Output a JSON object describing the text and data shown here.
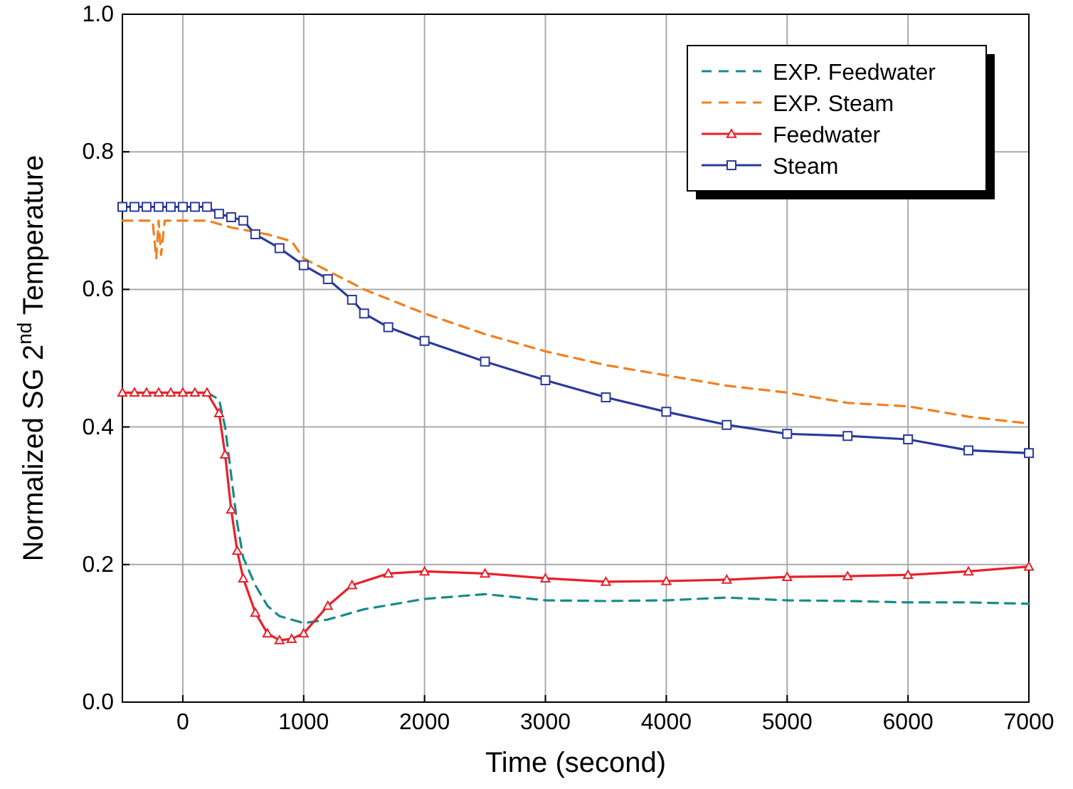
{
  "chart_data": {
    "type": "line",
    "xlabel": "Time (second)",
    "ylabel": "Normalized SG 2$^{nd}$ Temperature",
    "xlim": [
      -500,
      7000
    ],
    "xticks": [
      0,
      1000,
      2000,
      3000,
      4000,
      5000,
      6000,
      7000
    ],
    "ylim": [
      0,
      1
    ],
    "yticks": [
      {
        "value": 0,
        "label": "0.0"
      },
      {
        "value": 0.2,
        "label": "0.2"
      },
      {
        "value": 0.4,
        "label": "0.4"
      },
      {
        "value": 0.6,
        "label": "0.6"
      },
      {
        "value": 0.8,
        "label": "0.8"
      },
      {
        "value": 1,
        "label": "1.0"
      }
    ],
    "grid": true,
    "legend": "top right",
    "series": [
      {
        "name": "EXP. Feedwater",
        "color": "#1a8a8a",
        "line_style": "dashed",
        "marker": "none",
        "x": [
          200,
          300,
          350,
          400,
          450,
          500,
          600,
          700,
          800,
          1000,
          1200,
          1500,
          2000,
          2500,
          3000,
          3500,
          4000,
          4500,
          5000,
          5500,
          6000,
          6500,
          7000
        ],
        "values": [
          0.45,
          0.44,
          0.4,
          0.33,
          0.26,
          0.21,
          0.17,
          0.14,
          0.125,
          0.115,
          0.12,
          0.135,
          0.15,
          0.157,
          0.148,
          0.147,
          0.148,
          0.152,
          0.148,
          0.147,
          0.145,
          0.145,
          0.143
        ]
      },
      {
        "name": "EXP. Steam",
        "color": "#f08020",
        "line_style": "dashed",
        "marker": "none",
        "x": [
          -500,
          -250,
          -220,
          -200,
          -180,
          -150,
          0,
          200,
          400,
          700,
          900,
          1000,
          1500,
          2000,
          2500,
          3000,
          3500,
          4000,
          4500,
          5000,
          5500,
          6000,
          6500,
          7000
        ],
        "values": [
          0.7,
          0.7,
          0.645,
          0.7,
          0.65,
          0.7,
          0.7,
          0.7,
          0.69,
          0.68,
          0.67,
          0.645,
          0.6,
          0.565,
          0.535,
          0.51,
          0.49,
          0.475,
          0.46,
          0.45,
          0.435,
          0.43,
          0.415,
          0.405
        ]
      },
      {
        "name": "Feedwater",
        "color": "#e8202a",
        "line_style": "solid",
        "marker": "triangle",
        "x": [
          -500,
          -400,
          -300,
          -200,
          -100,
          0,
          100,
          200,
          300,
          350,
          400,
          450,
          500,
          600,
          700,
          800,
          900,
          1000,
          1200,
          1400,
          1700,
          2000,
          2500,
          3000,
          3500,
          4000,
          4500,
          5000,
          5500,
          6000,
          6500,
          7000
        ],
        "values": [
          0.45,
          0.45,
          0.45,
          0.45,
          0.45,
          0.45,
          0.45,
          0.45,
          0.42,
          0.36,
          0.28,
          0.22,
          0.18,
          0.13,
          0.1,
          0.09,
          0.092,
          0.1,
          0.14,
          0.17,
          0.187,
          0.19,
          0.187,
          0.18,
          0.175,
          0.176,
          0.178,
          0.182,
          0.183,
          0.185,
          0.19,
          0.197
        ]
      },
      {
        "name": "Steam",
        "color": "#2a3a9a",
        "line_style": "solid",
        "marker": "square",
        "x": [
          -500,
          -400,
          -300,
          -200,
          -100,
          0,
          100,
          200,
          300,
          400,
          500,
          600,
          800,
          1000,
          1200,
          1400,
          1500,
          1700,
          2000,
          2500,
          3000,
          3500,
          4000,
          4500,
          5000,
          5500,
          6000,
          6500,
          7000
        ],
        "values": [
          0.72,
          0.72,
          0.72,
          0.72,
          0.72,
          0.72,
          0.72,
          0.72,
          0.71,
          0.705,
          0.7,
          0.68,
          0.66,
          0.635,
          0.615,
          0.585,
          0.565,
          0.545,
          0.525,
          0.495,
          0.468,
          0.443,
          0.422,
          0.403,
          0.39,
          0.387,
          0.382,
          0.366,
          0.362
        ]
      }
    ]
  }
}
